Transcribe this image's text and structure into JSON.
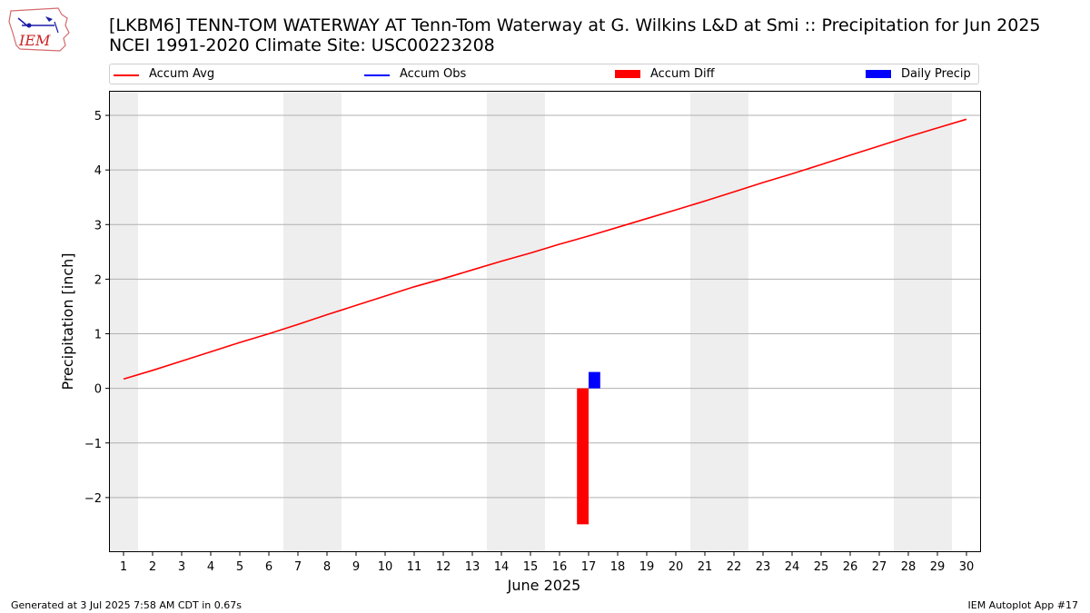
{
  "header": {
    "title_line1": "[LKBM6] TENN-TOM WATERWAY  AT Tenn-Tom Waterway at G. Wilkins L&D at Smi :: Precipitation for Jun 2025",
    "title_line2": "NCEI 1991-2020 Climate Site: USC00223208",
    "logo_text": "IEM"
  },
  "footer": {
    "left": "Generated at 3 Jul 2025 7:58 AM CDT in 0.67s",
    "right": "IEM Autoplot App #17"
  },
  "colors": {
    "accum_avg": "#ff0000",
    "accum_obs": "#0000ff",
    "accum_diff": "#ff0000",
    "daily_precip": "#0000ff",
    "weekend_shade": "#eeeeee",
    "grid": "#b0b0b0"
  },
  "legend": [
    {
      "label": "Accum Avg",
      "kind": "line",
      "color": "#ff0000"
    },
    {
      "label": "Accum Obs",
      "kind": "line",
      "color": "#0000ff"
    },
    {
      "label": "Accum Diff",
      "kind": "bar",
      "color": "#ff0000"
    },
    {
      "label": "Daily Precip",
      "kind": "bar",
      "color": "#0000ff"
    }
  ],
  "chart_data": {
    "type": "line",
    "xlabel": "June 2025",
    "ylabel": "Precipitation [inch]",
    "x": [
      1,
      2,
      3,
      4,
      5,
      6,
      7,
      8,
      9,
      10,
      11,
      12,
      13,
      14,
      15,
      16,
      17,
      18,
      19,
      20,
      21,
      22,
      23,
      24,
      25,
      26,
      27,
      28,
      29,
      30
    ],
    "xlim": [
      0.5,
      30.5
    ],
    "ylim": [
      -3.0,
      5.45
    ],
    "yticks": [
      -2,
      -1,
      0,
      1,
      2,
      3,
      4,
      5
    ],
    "ytick_labels": [
      "−2",
      "−1",
      "0",
      "1",
      "2",
      "3",
      "4",
      "5"
    ],
    "grid": "y",
    "legend_position": "top",
    "weekend_days": [
      1,
      7,
      8,
      14,
      15,
      21,
      22,
      28,
      29
    ],
    "series": [
      {
        "name": "Accum Avg",
        "kind": "line",
        "x": [
          1,
          2,
          3,
          4,
          5,
          6,
          7,
          8,
          9,
          10,
          11,
          12,
          13,
          14,
          15,
          16,
          17,
          18,
          19,
          20,
          21,
          22,
          23,
          24,
          25,
          26,
          27,
          28,
          29,
          30
        ],
        "values": [
          0.17,
          0.33,
          0.5,
          0.67,
          0.84,
          1.0,
          1.17,
          1.35,
          1.52,
          1.69,
          1.86,
          2.01,
          2.17,
          2.33,
          2.48,
          2.64,
          2.79,
          2.95,
          3.11,
          3.27,
          3.43,
          3.6,
          3.77,
          3.93,
          4.1,
          4.27,
          4.44,
          4.61,
          4.77,
          4.93
        ]
      },
      {
        "name": "Accum Obs",
        "kind": "line",
        "x": [],
        "values": []
      },
      {
        "name": "Accum Diff",
        "kind": "bar",
        "x": [
          17
        ],
        "values": [
          -2.49
        ]
      },
      {
        "name": "Daily Precip",
        "kind": "bar",
        "x": [
          17
        ],
        "values": [
          0.3
        ]
      }
    ]
  }
}
